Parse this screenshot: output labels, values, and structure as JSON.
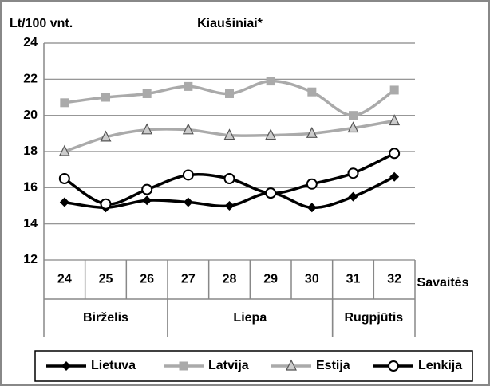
{
  "chart_data": {
    "type": "line",
    "title": "Kiaušiniai*",
    "y_label": "Lt/100 vnt.",
    "x_label": "Savaitės",
    "categories": [
      "24",
      "25",
      "26",
      "27",
      "28",
      "29",
      "30",
      "31",
      "32"
    ],
    "groups": [
      {
        "label": "Birželis",
        "span": 3
      },
      {
        "label": "Liepa",
        "span": 4
      },
      {
        "label": "Rugpjūtis",
        "span": 2
      }
    ],
    "ylim": [
      12,
      24
    ],
    "yticks": [
      12,
      14,
      16,
      18,
      20,
      22,
      24
    ],
    "grid": true,
    "series": [
      {
        "name": "Lietuva",
        "color": "#000000",
        "marker": "diamond",
        "values": [
          15.2,
          14.9,
          15.3,
          15.2,
          15.0,
          15.7,
          14.9,
          15.5,
          16.6
        ]
      },
      {
        "name": "Latvija",
        "color": "#aaaaaa",
        "marker": "square",
        "values": [
          20.7,
          21.0,
          21.2,
          21.6,
          21.2,
          21.9,
          21.3,
          20.0,
          21.4
        ]
      },
      {
        "name": "Estija",
        "color": "#aaaaaa",
        "marker": "triangle",
        "values": [
          18.0,
          18.8,
          19.2,
          19.2,
          18.9,
          18.9,
          19.0,
          19.3,
          19.7
        ]
      },
      {
        "name": "Lenkija",
        "color": "#000000",
        "marker": "circle",
        "values": [
          16.5,
          15.1,
          15.9,
          16.7,
          16.5,
          15.7,
          16.2,
          16.8,
          17.9
        ]
      }
    ]
  }
}
